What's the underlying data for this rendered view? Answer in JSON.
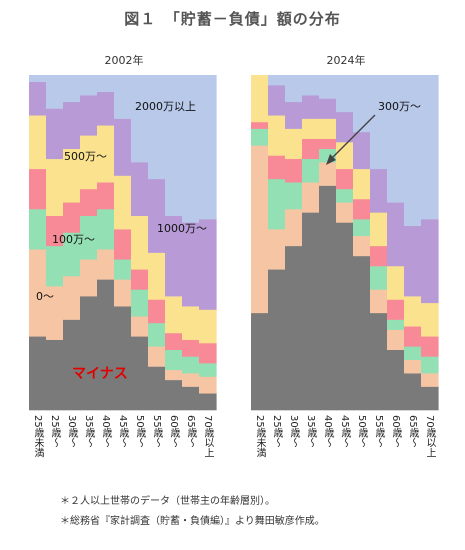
{
  "title": "図１　「貯蓄－負債」額の分布",
  "notes": [
    "＊２人以上世帯のデータ（世帯主の年齢層別）。",
    "＊総務省『家計調査（貯蓄・負債編）』より舞田敏彦作成。"
  ],
  "colors": {
    "minus": "#7a7a7a",
    "zero": "#f6c5a4",
    "m100": "#93e0b4",
    "m300": "#f78a96",
    "m500": "#fae28f",
    "m1000": "#b79ad6",
    "m2000": "#b8c9ea",
    "minus_label": "#e00000"
  },
  "chart_data": [
    {
      "type": "area",
      "title": "2002年",
      "categories": [
        "25歳未満",
        "25歳～",
        "30歳～",
        "35歳～",
        "40歳～",
        "45歳～",
        "50歳～",
        "55歳～",
        "60歳～",
        "65歳～",
        "70歳以上"
      ],
      "bands": [
        "マイナス",
        "0～",
        "100万～",
        "300万～",
        "500万～",
        "1000万～",
        "2000万以上"
      ],
      "cumulative_tops": [
        [
          0.22,
          0.48,
          0.6,
          0.72,
          0.88,
          0.98,
          1.0
        ],
        [
          0.21,
          0.37,
          0.49,
          0.58,
          0.75,
          0.9,
          1.0
        ],
        [
          0.27,
          0.4,
          0.53,
          0.62,
          0.78,
          0.92,
          1.0
        ],
        [
          0.34,
          0.45,
          0.58,
          0.66,
          0.82,
          0.94,
          1.0
        ],
        [
          0.39,
          0.48,
          0.6,
          0.68,
          0.85,
          0.95,
          1.0
        ],
        [
          0.31,
          0.39,
          0.45,
          0.54,
          0.7,
          0.87,
          1.0
        ],
        [
          0.22,
          0.28,
          0.36,
          0.42,
          0.58,
          0.74,
          1.0
        ],
        [
          0.13,
          0.19,
          0.26,
          0.33,
          0.47,
          0.69,
          1.0
        ],
        [
          0.09,
          0.12,
          0.18,
          0.23,
          0.34,
          0.58,
          1.0
        ],
        [
          0.07,
          0.11,
          0.16,
          0.21,
          0.31,
          0.56,
          1.0
        ],
        [
          0.05,
          0.1,
          0.14,
          0.2,
          0.3,
          0.57,
          1.0
        ]
      ],
      "labels": [
        {
          "text": "2000万以上",
          "band": "2000万以上"
        },
        {
          "text": "1000万～",
          "band": "1000万～"
        },
        {
          "text": "500万～",
          "band": "500万～"
        },
        {
          "text": "100万～",
          "band": "100万～"
        },
        {
          "text": "0～",
          "band": "0～"
        },
        {
          "text": "マイナス",
          "band": "マイナス"
        }
      ]
    },
    {
      "type": "area",
      "title": "2024年",
      "categories": [
        "25歳未満",
        "25歳～",
        "30歳～",
        "35歳～",
        "40歳～",
        "45歳～",
        "50歳～",
        "55歳～",
        "60歳～",
        "65歳～",
        "70歳以上"
      ],
      "bands": [
        "マイナス",
        "0～",
        "100万～",
        "300万～",
        "500万～",
        "1000万～",
        "2000万以上"
      ],
      "cumulative_tops": [
        [
          0.29,
          0.79,
          0.84,
          0.86,
          1.0,
          1.0,
          1.0
        ],
        [
          0.42,
          0.54,
          0.69,
          0.76,
          0.88,
          0.97,
          1.0
        ],
        [
          0.49,
          0.6,
          0.68,
          0.75,
          0.84,
          0.92,
          1.0
        ],
        [
          0.59,
          0.68,
          0.75,
          0.81,
          0.87,
          0.94,
          1.0
        ],
        [
          0.67,
          0.74,
          0.78,
          0.81,
          0.87,
          0.93,
          1.0
        ],
        [
          0.56,
          0.62,
          0.66,
          0.72,
          0.8,
          0.89,
          1.0
        ],
        [
          0.46,
          0.52,
          0.57,
          0.63,
          0.72,
          0.83,
          1.0
        ],
        [
          0.29,
          0.36,
          0.43,
          0.49,
          0.59,
          0.72,
          1.0
        ],
        [
          0.18,
          0.24,
          0.27,
          0.33,
          0.43,
          0.62,
          1.0
        ],
        [
          0.11,
          0.15,
          0.19,
          0.25,
          0.34,
          0.55,
          1.0
        ],
        [
          0.07,
          0.11,
          0.16,
          0.22,
          0.32,
          0.57,
          1.0
        ]
      ],
      "labels": [
        {
          "text": "300万～",
          "band": "300万～",
          "arrow": true
        }
      ]
    }
  ]
}
